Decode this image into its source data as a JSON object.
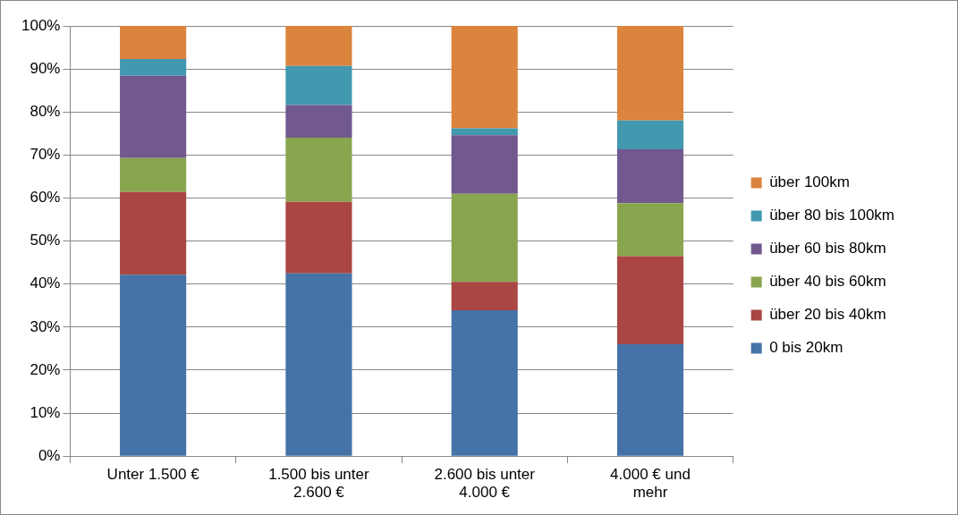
{
  "chart_data": {
    "type": "bar",
    "stacked": true,
    "categories": [
      "Unter 1.500 €",
      "1.500 bis unter 2.600 €",
      "2.600 bis unter 4.000 €",
      "4.000 € und mehr"
    ],
    "series": [
      {
        "name": "0 bis 20km",
        "color": "#4572a7",
        "values": [
          42.2,
          42.5,
          33.9,
          26.0
        ]
      },
      {
        "name": "über 20 bis 40km",
        "color": "#aa4643",
        "values": [
          19.2,
          16.6,
          6.6,
          20.5
        ]
      },
      {
        "name": "über 40 bis 60km",
        "color": "#89a54e",
        "values": [
          7.9,
          14.9,
          20.5,
          12.3
        ]
      },
      {
        "name": "über 60 bis 80km",
        "color": "#71588f",
        "values": [
          19.1,
          7.6,
          13.6,
          12.5
        ]
      },
      {
        "name": "über 80 bis 100km",
        "color": "#4198af",
        "values": [
          3.9,
          9.1,
          1.6,
          6.7
        ]
      },
      {
        "name": "über 100km",
        "color": "#db843d",
        "values": [
          7.7,
          9.3,
          23.8,
          22.0
        ]
      }
    ],
    "ylim": [
      0,
      100
    ],
    "yticks": [
      {
        "value": 0,
        "label": "0%"
      },
      {
        "value": 10,
        "label": "10%"
      },
      {
        "value": 20,
        "label": "20%"
      },
      {
        "value": 30,
        "label": "30%"
      },
      {
        "value": 40,
        "label": "40%"
      },
      {
        "value": 50,
        "label": "50%"
      },
      {
        "value": 60,
        "label": "60%"
      },
      {
        "value": 70,
        "label": "70%"
      },
      {
        "value": 80,
        "label": "80%"
      },
      {
        "value": 90,
        "label": "90%"
      },
      {
        "value": 100,
        "label": "100%"
      }
    ],
    "grid": "y",
    "legend": "right"
  }
}
